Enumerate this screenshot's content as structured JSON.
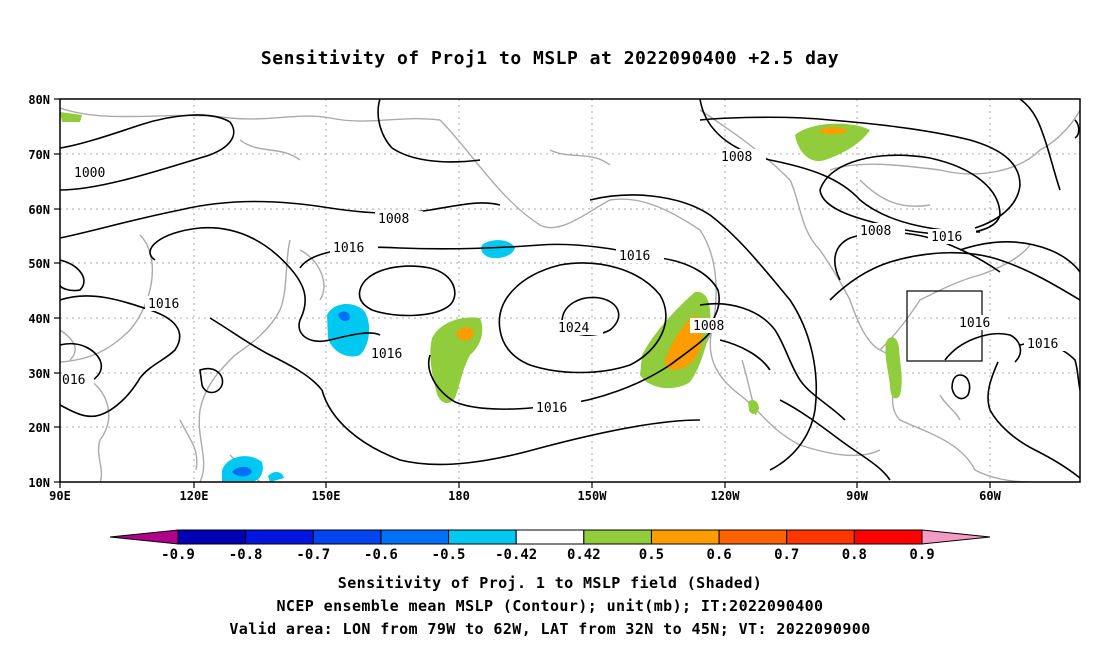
{
  "title": "Sensitivity of Proj1 to MSLP at 2022090400 +2.5 day",
  "lat_labels": [
    "80N",
    "70N",
    "60N",
    "50N",
    "40N",
    "30N",
    "20N",
    "10N"
  ],
  "lon_labels": [
    "90E",
    "120E",
    "150E",
    "180",
    "150W",
    "120W",
    "90W",
    "60W"
  ],
  "contour_labels": [
    "1000",
    "1008",
    "1016",
    "1016",
    "1024",
    "1016",
    "1016",
    "1008",
    "1008",
    "1008",
    "1016",
    "1016",
    "1016",
    "016"
  ],
  "colorbar": {
    "labels": [
      "-0.9",
      "-0.8",
      "-0.7",
      "-0.6",
      "-0.5",
      "-0.42",
      "0.42",
      "0.5",
      "0.6",
      "0.7",
      "0.8",
      "0.9"
    ],
    "colors": [
      "#b0008a",
      "#0000b4",
      "#0016e0",
      "#0044f0",
      "#0070f6",
      "#00c8f0",
      "#ffffff",
      "#90cc3c",
      "#ff9c00",
      "#ff6200",
      "#ff3600",
      "#ff0000",
      "#f59ac3"
    ]
  },
  "captions": [
    "Sensitivity of Proj. 1 to MSLP field (Shaded)",
    "NCEP ensemble mean MSLP (Contour); unit(mb); IT:2022090400",
    "Valid area: LON from 79W to 62W, LAT from 32N to 45N; VT: 2022090900"
  ]
}
